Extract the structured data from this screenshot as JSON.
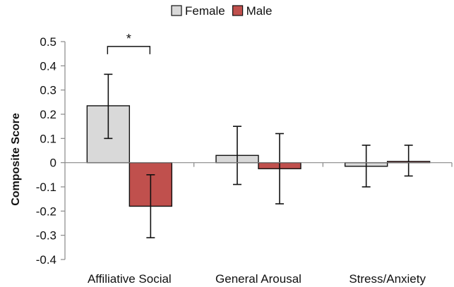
{
  "chart_data": {
    "type": "bar",
    "categories": [
      "Affiliative Social",
      "General Arousal",
      "Stress/Anxiety"
    ],
    "series": [
      {
        "name": "Female",
        "color": "#d9d9d9",
        "values": [
          0.235,
          0.03,
          -0.015
        ],
        "error_low": [
          0.1,
          -0.09,
          -0.1
        ],
        "error_high": [
          0.365,
          0.15,
          0.072
        ]
      },
      {
        "name": "Male",
        "color": "#c0504d",
        "values": [
          -0.18,
          -0.025,
          0.005
        ],
        "error_low": [
          -0.31,
          -0.17,
          -0.055
        ],
        "error_high": [
          -0.05,
          0.12,
          0.072
        ]
      }
    ],
    "ylabel": "Composite Score",
    "ylim": [
      -0.4,
      0.5
    ],
    "yticks": [
      "-0.4",
      "-0.3",
      "-0.2",
      "-0.1",
      "0",
      "0.1",
      "0.2",
      "0.3",
      "0.4",
      "0.5"
    ],
    "ytick_values": [
      -0.4,
      -0.3,
      -0.2,
      -0.1,
      0,
      0.1,
      0.2,
      0.3,
      0.4,
      0.5
    ],
    "legend_position": "top-center",
    "grid": false,
    "annotations": [
      {
        "text": "*",
        "category": "Affiliative Social",
        "bracket_y": 0.48
      }
    ]
  }
}
